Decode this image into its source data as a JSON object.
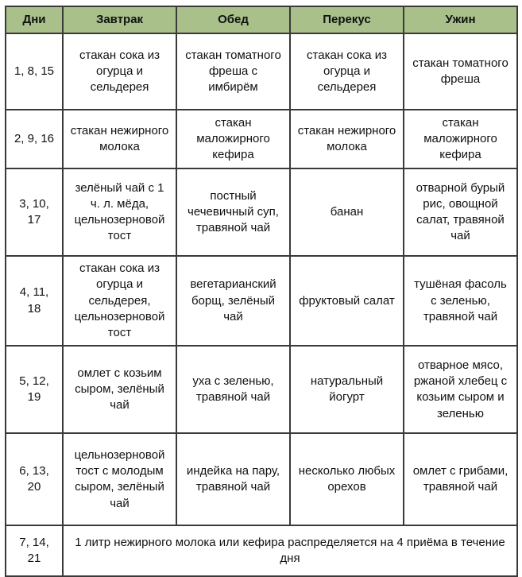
{
  "table": {
    "headers": [
      "Дни",
      "Завтрак",
      "Обед",
      "Перекус",
      "Ужин"
    ],
    "rows": [
      {
        "days": "1, 8, 15",
        "cells": [
          "стакан сока из огурца и сельдерея",
          "стакан томатного фреша с имбирём",
          "стакан сока из огурца и сельдерея",
          "стакан томатного фреша"
        ]
      },
      {
        "days": "2, 9, 16",
        "cells": [
          "стакан нежирного молока",
          "стакан маложирного кефира",
          "стакан нежирного молока",
          "стакан маложирного кефира"
        ]
      },
      {
        "days": "3, 10, 17",
        "cells": [
          "зелёный чай с 1 ч. л. мёда, цельнозерновой тост",
          "постный чечевичный суп, травяной чай",
          "банан",
          "отварной бурый рис, овощной салат, травяной чай"
        ]
      },
      {
        "days": "4, 11, 18",
        "cells": [
          "стакан сока из огурца и сельдерея, цельнозерновой тост",
          "вегетарианский борщ, зелёный чай",
          "фруктовый салат",
          "тушёная фасоль с зеленью, травяной чай"
        ]
      },
      {
        "days": "5, 12, 19",
        "cells": [
          "омлет с козьим сыром, зелёный чай",
          "уха с зеленью, травяной чай",
          "натуральный йогурт",
          "отварное мясо, ржаной хлебец с козьим сыром и зеленью"
        ]
      },
      {
        "days": "6, 13, 20",
        "cells": [
          "цельнозерновой тост с молодым сыром, зелёный чай",
          "индейка на пару, травяной чай",
          "несколько любых орехов",
          "омлет с грибами, травяной чай"
        ]
      }
    ],
    "footer": {
      "days": "7, 14, 21",
      "text": "1 литр нежирного молока или кефира распределяется на 4 приёма в течение дня"
    },
    "colors": {
      "header_bg": "#a9c08b",
      "border": "#3a3a3a",
      "text": "#111111",
      "cell_bg": "#ffffff"
    }
  }
}
